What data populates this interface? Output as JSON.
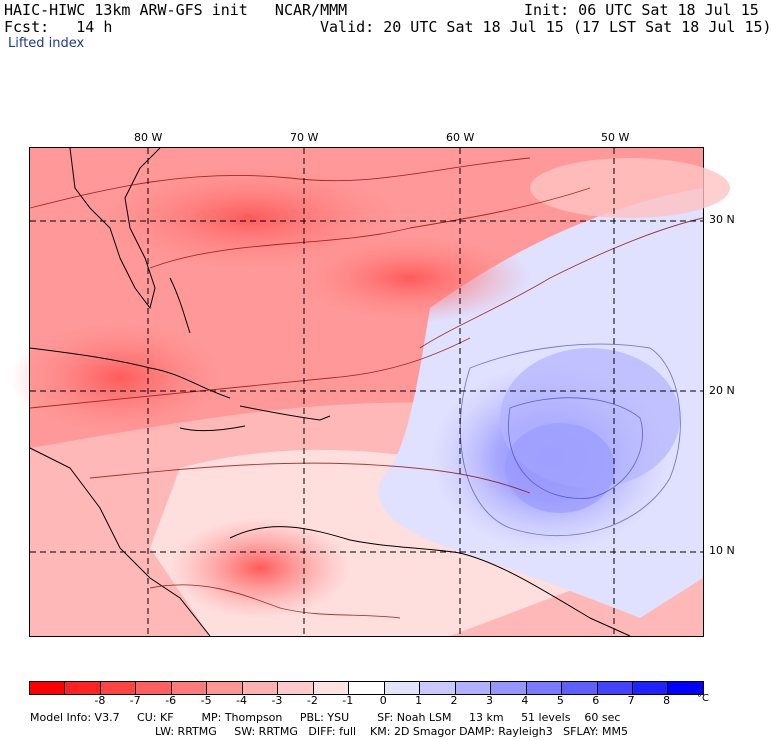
{
  "header": {
    "title": "HAIC-HIWC 13km ARW-GFS init   NCAR/MMM",
    "fcst": "Fcst:   14 h",
    "init": "Init: 06 UTC Sat 18 Jul 15",
    "valid": "Valid: 20 UTC Sat 18 Jul 15 (17 LST Sat 18 Jul 15)",
    "field": "Lifted index"
  },
  "longitude_labels": [
    "80 W",
    "70 W",
    "60 W",
    "50 W"
  ],
  "latitude_labels": [
    "30 N",
    "20 N",
    "10 N"
  ],
  "colorbar": {
    "colors": [
      "#ff0000",
      "#ff2222",
      "#ff4444",
      "#ff5f5f",
      "#ff7a7a",
      "#ff9696",
      "#ffb0b0",
      "#ffc9c9",
      "#ffe3e3",
      "#ffffff",
      "#e3e3ff",
      "#c9c9ff",
      "#b0b0ff",
      "#9696ff",
      "#7a7aff",
      "#5f5fff",
      "#4444ff",
      "#2222ff",
      "#0000ff"
    ],
    "ticks": [
      "-8",
      "-7",
      "-6",
      "-5",
      "-4",
      "-3",
      "-2",
      "-1",
      "0",
      "1",
      "2",
      "3",
      "4",
      "5",
      "6",
      "7",
      "8"
    ],
    "unit": "°C"
  },
  "model_info": {
    "line1": "Model Info: V3.7     CU: KF        MP: Thompson     PBL: YSU        SF: Noah LSM     13 km     51 levels    60 sec",
    "line2": "LW: RRTMG     SW: RRTMG   DIFF: full    KM: 2D Smagor DAMP: Rayleigh3   SFLAY: MM5"
  }
}
